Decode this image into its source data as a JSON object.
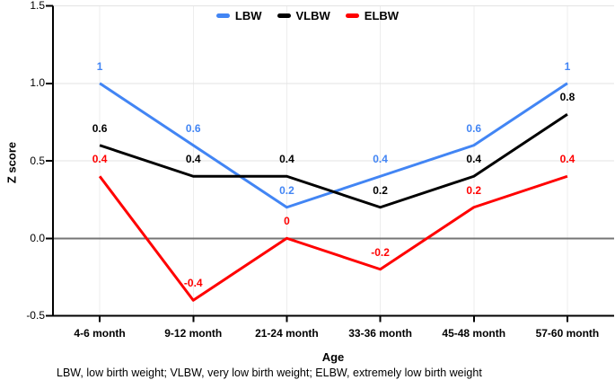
{
  "chart_data": {
    "type": "line",
    "title": "",
    "xlabel": "Age",
    "ylabel": "Z score",
    "footnote": "LBW, low birth weight; VLBW, very low birth weight; ELBW, extremely low birth weight",
    "categories": [
      "4-6 month",
      "9-12 month",
      "21-24 month",
      "33-36 month",
      "45-48 month",
      "57-60 month"
    ],
    "series": [
      {
        "name": "LBW",
        "color": "#4285F4",
        "values": [
          1,
          0.6,
          0.2,
          0.4,
          0.6,
          1
        ]
      },
      {
        "name": "VLBW",
        "color": "#000000",
        "values": [
          0.6,
          0.4,
          0.4,
          0.2,
          0.4,
          0.8
        ]
      },
      {
        "name": "ELBW",
        "color": "#FF0000",
        "values": [
          0.4,
          -0.4,
          0,
          -0.2,
          0.2,
          0.4
        ]
      }
    ],
    "y_ticks": [
      {
        "label": "1.5",
        "value": 1.5
      },
      {
        "label": "1.0",
        "value": 1.0
      },
      {
        "label": "0.5",
        "value": 0.5
      },
      {
        "label": "0.0",
        "value": 0.0
      },
      {
        "label": "-0.5",
        "value": -0.5
      }
    ],
    "ylim": [
      -0.5,
      1.5
    ],
    "grid": true,
    "legend_position": "top",
    "colors": {
      "grid_h": "#E3E3E3",
      "grid_v": "#EDEDED",
      "zero_line": "#757575",
      "axis": "#000000"
    }
  }
}
